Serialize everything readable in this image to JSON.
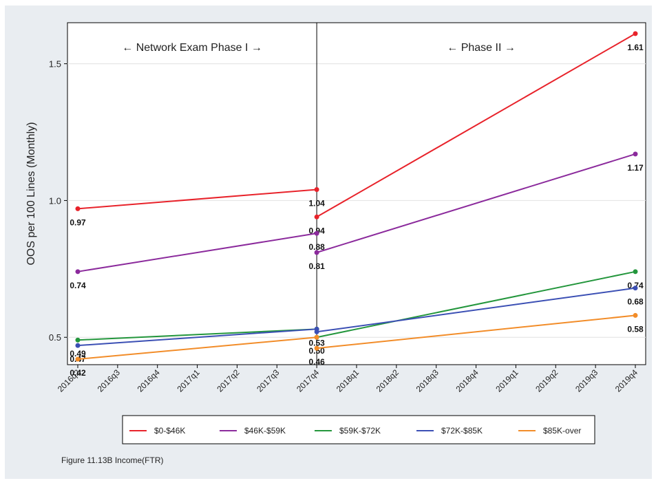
{
  "caption": "Figure 11.13B Income(FTR)",
  "chart_data": {
    "type": "line",
    "ylabel": "OOS per 100 Lines (Monthly)",
    "xlabel": "",
    "categories": [
      "2016q2",
      "2016q3",
      "2016q4",
      "2017q1",
      "2017q2",
      "2017q3",
      "2017q4",
      "2018q1",
      "2018q2",
      "2018q3",
      "2018q4",
      "2019q1",
      "2019q2",
      "2019q3",
      "2019q4"
    ],
    "ylim": [
      0.4,
      1.65
    ],
    "yticks": [
      0.5,
      1.0,
      1.5
    ],
    "ytick_labels": [
      "0.5",
      "1.0",
      "1.5"
    ],
    "grid": true,
    "legend_position": "bottom",
    "phase_break": "2017q4",
    "annotations": [
      {
        "text": "← Network Exam Phase I →",
        "anchor": "phase1"
      },
      {
        "text": "← Phase II →",
        "anchor": "phase2"
      }
    ],
    "series": [
      {
        "name": "$0-$46K",
        "color": "#e8222a",
        "phase1": {
          "x": [
            "2016q2",
            "2017q4"
          ],
          "y": [
            0.97,
            1.04
          ],
          "labels": [
            "0.97",
            "1.04"
          ]
        },
        "phase2": {
          "x": [
            "2017q4",
            "2019q4"
          ],
          "y": [
            0.94,
            1.61
          ],
          "labels": [
            "0.94",
            "1.61"
          ]
        }
      },
      {
        "name": "$46K-$59K",
        "color": "#8b2a9c",
        "phase1": {
          "x": [
            "2016q2",
            "2017q4"
          ],
          "y": [
            0.74,
            0.88
          ],
          "labels": [
            "0.74",
            "0.88"
          ]
        },
        "phase2": {
          "x": [
            "2017q4",
            "2019q4"
          ],
          "y": [
            0.81,
            1.17
          ],
          "labels": [
            "0.81",
            "1.17"
          ]
        }
      },
      {
        "name": "$59K-$72K",
        "color": "#23963c",
        "phase1": {
          "x": [
            "2016q2",
            "2017q4"
          ],
          "y": [
            0.49,
            0.53
          ],
          "labels": [
            "0.49",
            "0.53"
          ]
        },
        "phase2": {
          "x": [
            "2017q4",
            "2019q4"
          ],
          "y": [
            0.5,
            0.74
          ],
          "labels": [
            "0.50",
            "0.74"
          ]
        }
      },
      {
        "name": "$72K-$85K",
        "color": "#3b4fb4",
        "phase1": {
          "x": [
            "2016q2",
            "2017q4"
          ],
          "y": [
            0.47,
            0.53
          ],
          "labels": [
            "0.47",
            ""
          ]
        },
        "phase2": {
          "x": [
            "2017q4",
            "2019q4"
          ],
          "y": [
            0.52,
            0.68
          ],
          "labels": [
            "",
            "0.68"
          ]
        }
      },
      {
        "name": "$85K-over",
        "color": "#f28c28",
        "phase1": {
          "x": [
            "2016q2",
            "2017q4"
          ],
          "y": [
            0.42,
            0.5
          ],
          "labels": [
            "0.42",
            ""
          ]
        },
        "phase2": {
          "x": [
            "2017q4",
            "2019q4"
          ],
          "y": [
            0.46,
            0.58
          ],
          "labels": [
            "0.46",
            "0.58"
          ]
        }
      }
    ]
  }
}
